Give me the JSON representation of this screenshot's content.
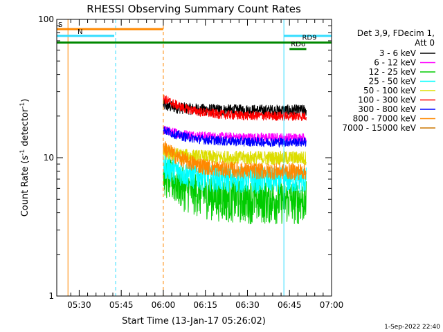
{
  "chart_data": {
    "type": "line",
    "title": "RHESSI Observing Summary Count Rates",
    "xlabel": "Start Time (13-Jan-17 05:26:02)",
    "ylabel_main": "Count Rate (s",
    "ylabel_sup1": "-1",
    "ylabel_mid": " detector",
    "ylabel_sup2": "-1",
    "ylabel_end": ")",
    "yscale": "log",
    "ylim": [
      1,
      100
    ],
    "xlim_minutes": [
      -4,
      94
    ],
    "yticks": [
      {
        "value": 1,
        "label": "1"
      },
      {
        "value": 10,
        "label": "10"
      },
      {
        "value": 100,
        "label": "100"
      }
    ],
    "xticks": [
      {
        "minute": 4,
        "label": "05:30"
      },
      {
        "minute": 19,
        "label": "05:45"
      },
      {
        "minute": 34,
        "label": "06:00"
      },
      {
        "minute": 49,
        "label": "06:15"
      },
      {
        "minute": 64,
        "label": "06:30"
      },
      {
        "minute": 79,
        "label": "06:45"
      },
      {
        "minute": 94,
        "label": "07:00"
      }
    ],
    "legend_header": [
      "Det 3,9, FDecim 1,",
      "Att 0"
    ],
    "legend_position": "right",
    "series": [
      {
        "name": "3 - 6 keV",
        "color": "#000000",
        "start": 24,
        "plateau": 22,
        "noise": 0.1
      },
      {
        "name": "6 - 12 keV",
        "color": "#ff00ff",
        "start": 16,
        "plateau": 14,
        "noise": 0.08
      },
      {
        "name": "12 - 25 keV",
        "color": "#00cc00",
        "start": 8,
        "plateau": 5,
        "noise": 0.35
      },
      {
        "name": "25 - 50 keV",
        "color": "#00ffff",
        "start": 9,
        "plateau": 7,
        "noise": 0.22
      },
      {
        "name": "50 - 100 keV",
        "color": "#dddd00",
        "start": 11,
        "plateau": 10,
        "noise": 0.12
      },
      {
        "name": "100 - 300 keV",
        "color": "#ff0000",
        "start": 27,
        "plateau": 20,
        "noise": 0.08
      },
      {
        "name": "300 - 800 keV",
        "color": "#0000ff",
        "start": 16,
        "plateau": 13,
        "noise": 0.08
      },
      {
        "name": "800 - 7000 keV",
        "color": "#ff8800",
        "start": 12,
        "plateau": 8,
        "noise": 0.14
      },
      {
        "name": "7000 - 15000 keV",
        "color": "#cc7700",
        "start": 0,
        "plateau": 0,
        "noise": 0
      }
    ],
    "data_interval_minutes": [
      34,
      85
    ],
    "state_bars": [
      {
        "label": "S",
        "color": "#ff8800",
        "x0": -4,
        "x1": 34,
        "y": 85
      },
      {
        "label": "N",
        "color": "#33ddff",
        "x0": -4,
        "x1": 16.5,
        "y": 76
      },
      {
        "label": "",
        "color": "#33ddff",
        "x0": 77,
        "x1": 94,
        "y": 76
      },
      {
        "label": "",
        "color": "#008800",
        "x0": -4,
        "x1": 94,
        "y": 68
      },
      {
        "label": "RD6",
        "color": "#008800",
        "x0": 79,
        "x1": 85,
        "y": 61
      },
      {
        "label": "RD9",
        "color": "#008800",
        "x0": 83,
        "x1": 94,
        "y": 68
      }
    ],
    "vlines": [
      {
        "minute": 0,
        "color": "#ff8800",
        "style": "solid"
      },
      {
        "minute": 17,
        "color": "#33ddff",
        "style": "dashed"
      },
      {
        "minute": 34,
        "color": "#ff8800",
        "style": "dashed"
      },
      {
        "minute": 77,
        "color": "#33ddff",
        "style": "solid"
      },
      {
        "minute": 94,
        "color": "#33ddff",
        "style": "dashed"
      }
    ]
  },
  "footer": {
    "timestamp": "1-Sep-2022 22:40"
  }
}
